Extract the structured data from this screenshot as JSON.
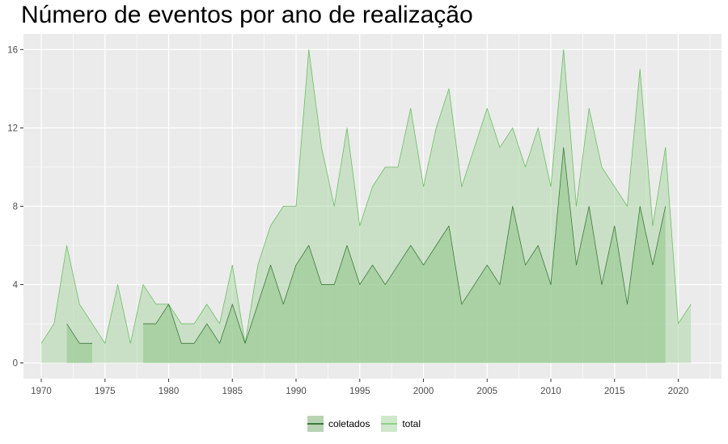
{
  "chart_data": {
    "type": "area",
    "title": "Número de eventos por ano de realização",
    "xlabel": "",
    "ylabel": "",
    "xlim": [
      1968.6,
      2023.4
    ],
    "ylim": [
      -0.8,
      16.8
    ],
    "x_ticks": [
      1970,
      1975,
      1980,
      1985,
      1990,
      1995,
      2000,
      2005,
      2010,
      2015,
      2020
    ],
    "y_ticks": [
      0,
      4,
      8,
      12,
      16
    ],
    "grid": true,
    "legend_position": "bottom",
    "series": [
      {
        "name": "total",
        "fill": "#a8d5a2",
        "stroke": "#6cbf62",
        "x": [
          1970,
          1971,
          1972,
          1973,
          1974,
          1975,
          1976,
          1977,
          1978,
          1979,
          1980,
          1981,
          1982,
          1983,
          1984,
          1985,
          1986,
          1987,
          1988,
          1989,
          1990,
          1991,
          1992,
          1993,
          1994,
          1995,
          1996,
          1997,
          1998,
          1999,
          2000,
          2001,
          2002,
          2003,
          2004,
          2005,
          2006,
          2007,
          2008,
          2009,
          2010,
          2011,
          2012,
          2013,
          2014,
          2015,
          2016,
          2017,
          2018,
          2019,
          2020,
          2021
        ],
        "y": [
          1,
          2,
          6,
          3,
          2,
          1,
          4,
          1,
          4,
          3,
          3,
          2,
          2,
          3,
          2,
          5,
          1,
          5,
          7,
          8,
          8,
          16,
          11,
          8,
          12,
          7,
          9,
          10,
          10,
          13,
          9,
          12,
          14,
          9,
          11,
          13,
          11,
          12,
          10,
          12,
          9,
          16,
          8,
          13,
          10,
          9,
          8,
          15,
          7,
          11,
          2,
          3
        ]
      },
      {
        "name": "coletados",
        "fill": "#8ec488",
        "stroke": "#3d7a3a",
        "segments": [
          {
            "x": [
              1972,
              1973,
              1974
            ],
            "y": [
              2,
              1,
              1
            ]
          },
          {
            "x": [
              1978,
              1979,
              1980,
              1981,
              1982,
              1983,
              1984,
              1985,
              1986,
              1987,
              1988,
              1989,
              1990,
              1991,
              1992,
              1993,
              1994,
              1995,
              1996,
              1997,
              1998,
              1999,
              2000,
              2001,
              2002,
              2003,
              2004,
              2005,
              2006,
              2007,
              2008,
              2009,
              2010,
              2011,
              2012,
              2013,
              2014,
              2015,
              2016,
              2017,
              2018,
              2019
            ],
            "y": [
              2,
              2,
              3,
              1,
              1,
              2,
              1,
              3,
              1,
              3,
              5,
              3,
              5,
              6,
              4,
              4,
              6,
              4,
              5,
              4,
              5,
              6,
              5,
              6,
              7,
              3,
              4,
              5,
              4,
              8,
              5,
              6,
              4,
              11,
              5,
              8,
              4,
              7,
              3,
              8,
              5,
              8
            ]
          }
        ]
      }
    ],
    "legend": [
      {
        "name": "coletados",
        "fill": "#b7d3b4",
        "stroke": "#3d7a3a"
      },
      {
        "name": "total",
        "fill": "#cfe8cb",
        "stroke": "#8fd087"
      }
    ]
  }
}
